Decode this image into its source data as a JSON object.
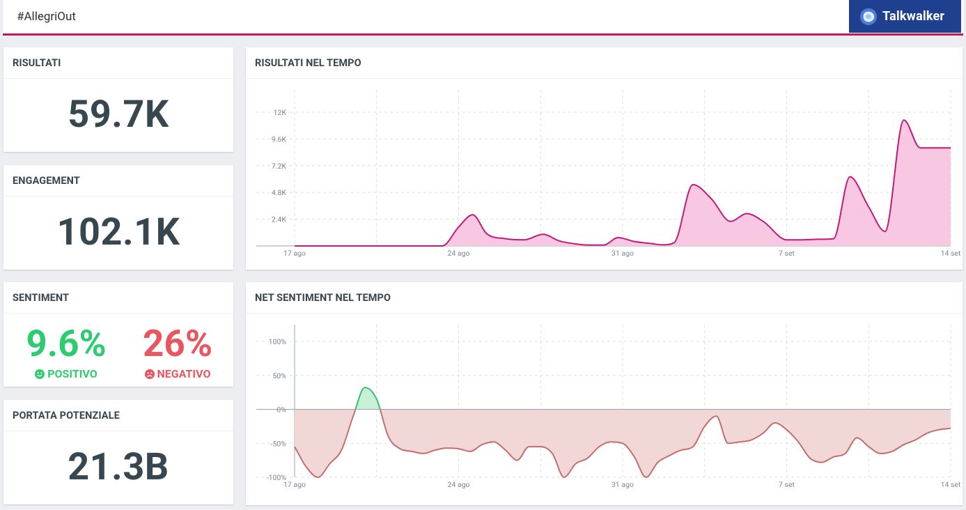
{
  "header": {
    "query": "#AllegriOut",
    "brand": "Talkwalker"
  },
  "kpis": {
    "results": {
      "title": "RISULTATI",
      "value": "59.7K"
    },
    "engagement": {
      "title": "ENGAGEMENT",
      "value": "102.1K"
    },
    "sentiment": {
      "title": "SENTIMENT",
      "positive_value": "9.6%",
      "positive_label": "POSITIVO",
      "positive_color": "#2ecc71",
      "negative_value": "26%",
      "negative_label": "NEGATIVO",
      "negative_color": "#e8575f"
    },
    "reach": {
      "title": "PORTATA POTENZIALE",
      "value": "21.3B"
    }
  },
  "charts": {
    "results_title": "RISULTATI NEL TEMPO",
    "sentiment_title": "NET SENTIMENT NEL TEMPO"
  },
  "chart_data": [
    {
      "type": "area",
      "title": "RISULTATI NEL TEMPO",
      "x_tick_labels": [
        "17 ago",
        "24 ago",
        "31 ago",
        "7 set",
        "14 set"
      ],
      "y_tick_labels": [
        "2.4K",
        "4.8K",
        "7.2K",
        "9.6K",
        "12K"
      ],
      "ylim": [
        0,
        13000
      ],
      "color": "#c2187c",
      "fill": "#f8c8e2",
      "series": [
        {
          "x": [
            0,
            1,
            2,
            3,
            4,
            4.8,
            5.6,
            6.3,
            7,
            7.6,
            8.2,
            9,
            9.8,
            10.6,
            11.3,
            12,
            12.6,
            13.2,
            13.8,
            14.5,
            15.2,
            15.7,
            16.2,
            17,
            17.8,
            18.6,
            19.3,
            20,
            21,
            21.7,
            22.4,
            23,
            23.7,
            24.5,
            25.2,
            26,
            26.7,
            27.5,
            28
          ],
          "y": [
            0,
            0,
            0,
            0,
            0,
            0,
            0,
            0,
            1700,
            2800,
            1100,
            650,
            550,
            1050,
            450,
            180,
            80,
            80,
            750,
            400,
            220,
            100,
            300,
            5500,
            4200,
            2200,
            2900,
            2200,
            550,
            550,
            600,
            650,
            6200,
            3500,
            1300,
            11300,
            8800,
            8800,
            8800
          ]
        }
      ]
    },
    {
      "type": "area",
      "title": "NET SENTIMENT NEL TEMPO",
      "x_tick_labels": [
        "17 ago",
        "24 ago",
        "31 ago",
        "7 set",
        "14 set"
      ],
      "y_tick_labels": [
        "-100%",
        "-50%",
        "0%",
        "50%",
        "100%"
      ],
      "ylim": [
        -100,
        100
      ],
      "colors": {
        "negative": "#c46d6d",
        "negative_fill": "#f1d8d6",
        "positive": "#36c271",
        "positive_fill": "#c7f0d6"
      },
      "series": [
        {
          "x": [
            0,
            0.5,
            1,
            1.5,
            2,
            2.5,
            3,
            3.5,
            4,
            4.5,
            5,
            5.5,
            6,
            6.5,
            7,
            7.5,
            8,
            8.5,
            9,
            9.5,
            10,
            10.5,
            11,
            11.5,
            12,
            12.5,
            13,
            13.5,
            14,
            14.5,
            15,
            15.5,
            16,
            16.5,
            17,
            17.5,
            18,
            18.5,
            19,
            19.5,
            20,
            20.5,
            21,
            21.5,
            22,
            22.5,
            23,
            23.5,
            24,
            24.5,
            25,
            25.5,
            26,
            26.5,
            27,
            27.5,
            28
          ],
          "y": [
            -55,
            -85,
            -100,
            -80,
            -60,
            -10,
            32,
            15,
            -40,
            -58,
            -62,
            -65,
            -60,
            -57,
            -58,
            -62,
            -52,
            -48,
            -60,
            -75,
            -55,
            -55,
            -65,
            -100,
            -80,
            -72,
            -55,
            -48,
            -50,
            -70,
            -100,
            -78,
            -68,
            -60,
            -55,
            -25,
            -10,
            -50,
            -48,
            -45,
            -35,
            -20,
            -30,
            -48,
            -72,
            -78,
            -70,
            -65,
            -42,
            -55,
            -65,
            -62,
            -52,
            -45,
            -35,
            -30,
            -28
          ]
        }
      ]
    }
  ]
}
